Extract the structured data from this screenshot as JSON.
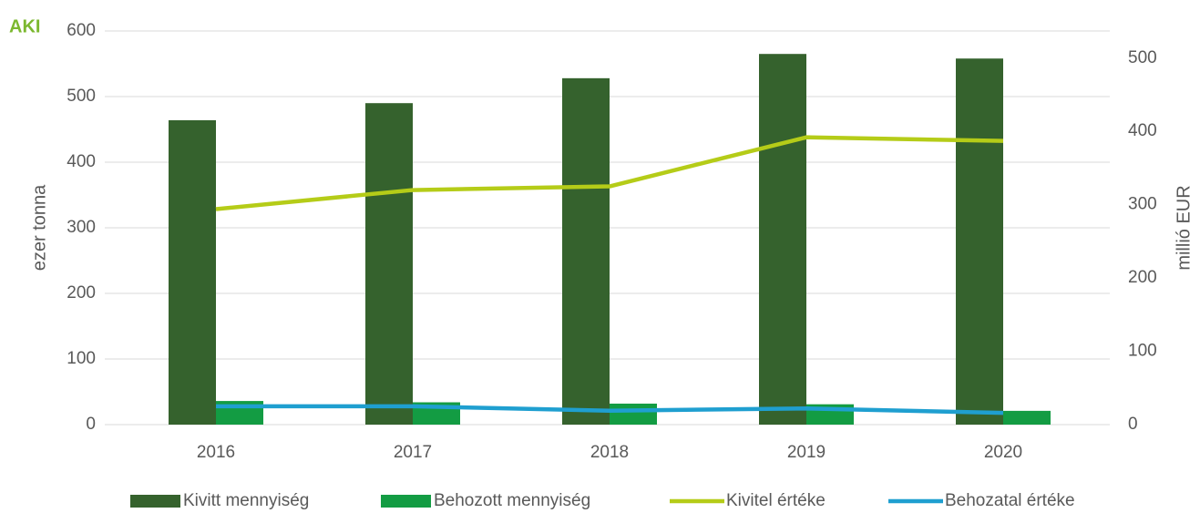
{
  "chart_data": {
    "type": "bar-line",
    "logo": "AKI",
    "y_label": "ezer tonna",
    "y2_label": "millió EUR",
    "categories": [
      "2016",
      "2017",
      "2018",
      "2019",
      "2020"
    ],
    "series": [
      {
        "name": "Kivitt mennyiség",
        "type": "bar",
        "color": "#35622d",
        "values": [
          464,
          490,
          528,
          565,
          558
        ]
      },
      {
        "name": "Behozott mennyiség",
        "type": "bar",
        "color": "#139c43",
        "values": [
          36,
          34,
          32,
          31,
          21
        ]
      },
      {
        "name": "Kivitel értéke",
        "type": "line",
        "axis": "y2",
        "color": "#b5cc18",
        "values": [
          294,
          320,
          325,
          392,
          387
        ]
      },
      {
        "name": "Behozatal értéke",
        "type": "line",
        "axis": "y2",
        "color": "#1f9fd0",
        "values": [
          25,
          25,
          19,
          22,
          16
        ]
      }
    ],
    "ylim": [
      0,
      600
    ],
    "yticks": [
      0,
      100,
      200,
      300,
      400,
      500,
      600
    ],
    "y2lim": [
      0,
      537
    ],
    "y2ticks": [
      0,
      100,
      200,
      300,
      400,
      500
    ],
    "grid": true,
    "legend": "bottom"
  }
}
